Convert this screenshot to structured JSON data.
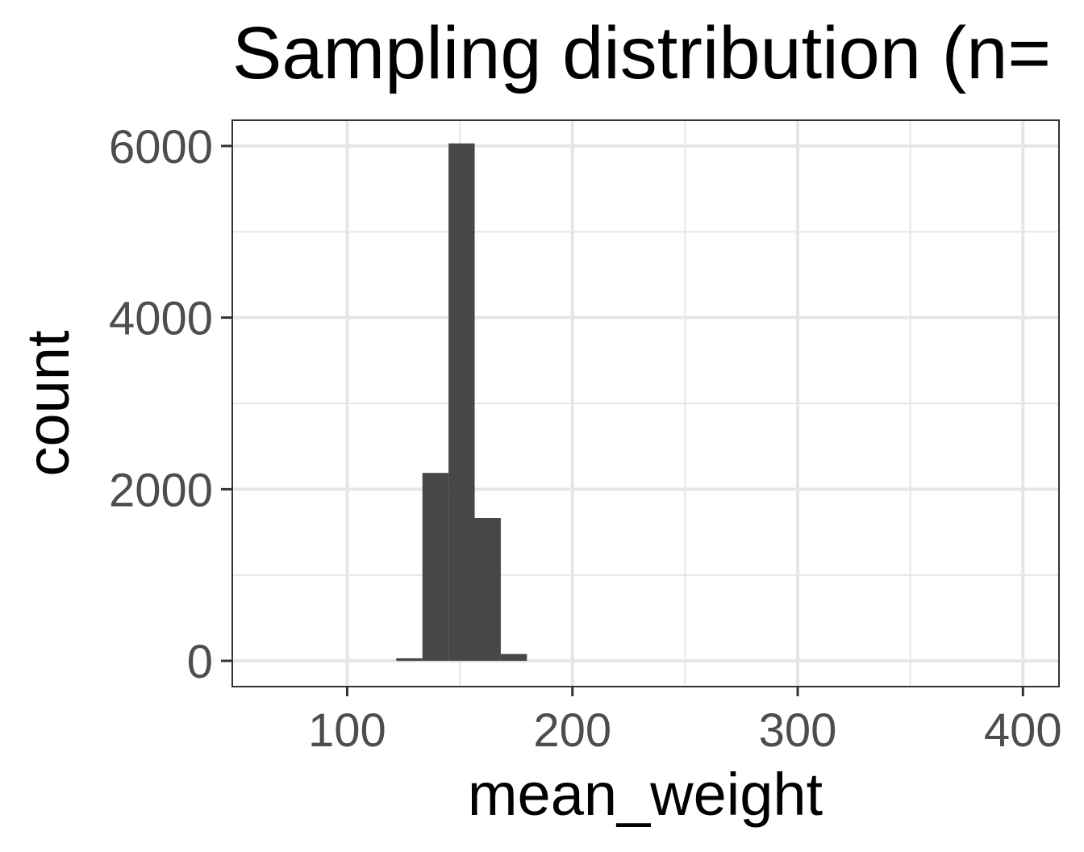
{
  "chart_data": {
    "type": "bar",
    "title": "Sampling distribution (n=",
    "xlabel": "mean_weight",
    "ylabel": "count",
    "xlim": [
      49,
      416
    ],
    "ylim": [
      -300,
      6300
    ],
    "x_ticks": [
      100,
      200,
      300,
      400
    ],
    "y_ticks": [
      0,
      2000,
      4000,
      6000
    ],
    "x_minor": [
      150,
      250,
      350
    ],
    "y_minor": [
      1000,
      3000,
      5000
    ],
    "grid": true,
    "bins": [
      {
        "x_start": 121.8,
        "x_end": 133.4,
        "count": 30
      },
      {
        "x_start": 133.4,
        "x_end": 145.0,
        "count": 2190
      },
      {
        "x_start": 145.0,
        "x_end": 156.6,
        "count": 6030
      },
      {
        "x_start": 156.6,
        "x_end": 168.2,
        "count": 1665
      },
      {
        "x_start": 168.2,
        "x_end": 179.8,
        "count": 80
      }
    ],
    "colors": {
      "bar": "#474747",
      "grid": "#e6e6e6",
      "border": "#333333",
      "tick_label": "#4d4d4d",
      "title": "#000000"
    }
  }
}
